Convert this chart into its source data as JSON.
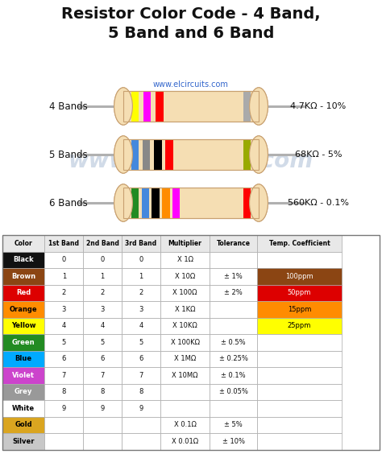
{
  "title": "Resistor Color Code - 4 Band,\n5 Band and 6 Band",
  "website": "www.elcircuits.com",
  "watermark": "www.elcircuits.com",
  "bg_color": "#ffffff",
  "resistor_body_color": "#F5DEB3",
  "resistor_edge_color": "#c8a070",
  "wire_color": "#b0b0b0",
  "bands_4": {
    "label": "4 Bands",
    "value_label": "4.7KΩ - 10%",
    "colors": [
      "#FFFF00",
      "#FF00FF",
      "#FF0000",
      "#aaaaaa"
    ]
  },
  "bands_5": {
    "label": "5 Bands",
    "value_label": "68KΩ - 5%",
    "colors": [
      "#4488DD",
      "#888888",
      "#000000",
      "#FF0000",
      "#99AA00"
    ]
  },
  "bands_6": {
    "label": "6 Bands",
    "value_label": "560KΩ - 0.1%",
    "colors": [
      "#228B22",
      "#4488DD",
      "#000000",
      "#FF8C00",
      "#FF00FF",
      "#FF0000"
    ]
  },
  "table_headers": [
    "Color",
    "1st Band",
    "2nd Band",
    "3rd Band",
    "Multiplier",
    "Tolerance",
    "Temp. Coefficient"
  ],
  "table_rows": [
    {
      "name": "Black",
      "bg": "#111111",
      "text": "#ffffff",
      "bold_name": true,
      "v1": "0",
      "v2": "0",
      "v3": "0",
      "mult": "X 1Ω",
      "tol": "",
      "temp": ""
    },
    {
      "name": "Brown",
      "bg": "#8B4513",
      "text": "#ffffff",
      "bold_name": true,
      "v1": "1",
      "v2": "1",
      "v3": "1",
      "mult": "X 10Ω",
      "tol": "± 1%",
      "temp": "100ppm"
    },
    {
      "name": "Red",
      "bg": "#DD0000",
      "text": "#ffffff",
      "bold_name": false,
      "v1": "2",
      "v2": "2",
      "v3": "2",
      "mult": "X 100Ω",
      "tol": "± 2%",
      "temp": "50ppm"
    },
    {
      "name": "Orange",
      "bg": "#FF8C00",
      "text": "#000000",
      "bold_name": false,
      "v1": "3",
      "v2": "3",
      "v3": "3",
      "mult": "X 1KΩ",
      "tol": "",
      "temp": "15ppm"
    },
    {
      "name": "Yellow",
      "bg": "#FFFF00",
      "text": "#000000",
      "bold_name": true,
      "v1": "4",
      "v2": "4",
      "v3": "4",
      "mult": "X 10KΩ",
      "tol": "",
      "temp": "25ppm"
    },
    {
      "name": "Green",
      "bg": "#228B22",
      "text": "#ffffff",
      "bold_name": false,
      "v1": "5",
      "v2": "5",
      "v3": "5",
      "mult": "X 100KΩ",
      "tol": "± 0.5%",
      "temp": ""
    },
    {
      "name": "Blue",
      "bg": "#00AAFF",
      "text": "#000000",
      "bold_name": false,
      "v1": "6",
      "v2": "6",
      "v3": "6",
      "mult": "X 1MΩ",
      "tol": "± 0.25%",
      "temp": ""
    },
    {
      "name": "Violet",
      "bg": "#CC44CC",
      "text": "#ffffff",
      "bold_name": true,
      "v1": "7",
      "v2": "7",
      "v3": "7",
      "mult": "X 10MΩ",
      "tol": "± 0.1%",
      "temp": ""
    },
    {
      "name": "Grey",
      "bg": "#999999",
      "text": "#ffffff",
      "bold_name": false,
      "v1": "8",
      "v2": "8",
      "v3": "8",
      "mult": "",
      "tol": "± 0.05%",
      "temp": ""
    },
    {
      "name": "White",
      "bg": "#ffffff",
      "text": "#000000",
      "bold_name": false,
      "v1": "9",
      "v2": "9",
      "v3": "9",
      "mult": "",
      "tol": "",
      "temp": ""
    },
    {
      "name": "Gold",
      "bg": "#DAA520",
      "text": "#000000",
      "bold_name": false,
      "v1": "",
      "v2": "",
      "v3": "",
      "mult": "X 0.1Ω",
      "tol": "± 5%",
      "temp": ""
    },
    {
      "name": "Silver",
      "bg": "#C8C8C8",
      "text": "#000000",
      "bold_name": false,
      "v1": "",
      "v2": "",
      "v3": "",
      "mult": "X 0.01Ω",
      "tol": "± 10%",
      "temp": ""
    }
  ]
}
